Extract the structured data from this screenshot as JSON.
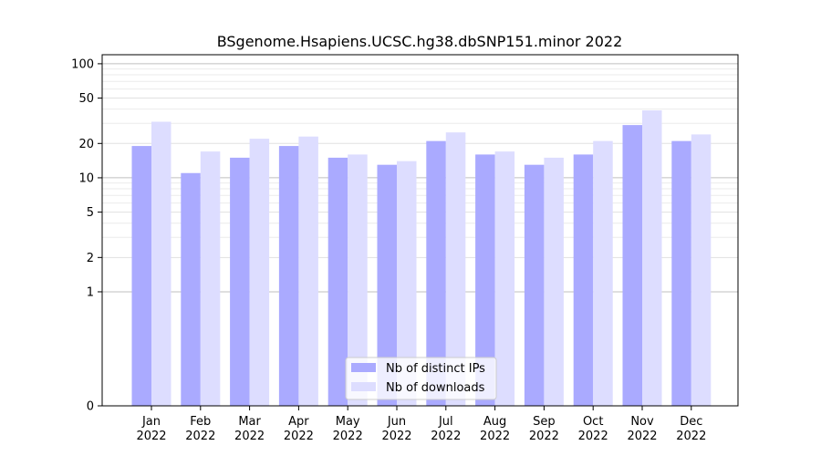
{
  "chart_data": {
    "type": "bar",
    "title": "BSgenome.Hsapiens.UCSC.hg38.dbSNP151.minor 2022",
    "xlabel": "",
    "ylabel": "",
    "y_scale": "symlog",
    "ylim": [
      0,
      120
    ],
    "yticks": [
      0,
      1,
      2,
      5,
      10,
      20,
      50,
      100
    ],
    "categories": [
      [
        "Jan",
        "2022"
      ],
      [
        "Feb",
        "2022"
      ],
      [
        "Mar",
        "2022"
      ],
      [
        "Apr",
        "2022"
      ],
      [
        "May",
        "2022"
      ],
      [
        "Jun",
        "2022"
      ],
      [
        "Jul",
        "2022"
      ],
      [
        "Aug",
        "2022"
      ],
      [
        "Sep",
        "2022"
      ],
      [
        "Oct",
        "2022"
      ],
      [
        "Nov",
        "2022"
      ],
      [
        "Dec",
        "2022"
      ]
    ],
    "series": [
      {
        "name": "Nb of distinct IPs",
        "color": "#aaaaff",
        "values": [
          19,
          11,
          15,
          19,
          15,
          13,
          21,
          16,
          13,
          16,
          29,
          21
        ]
      },
      {
        "name": "Nb of downloads",
        "color": "#ddddff",
        "values": [
          31,
          17,
          22,
          23,
          16,
          14,
          25,
          17,
          15,
          21,
          39,
          24
        ]
      }
    ],
    "legend_position": "bottom-center",
    "grid": true
  }
}
